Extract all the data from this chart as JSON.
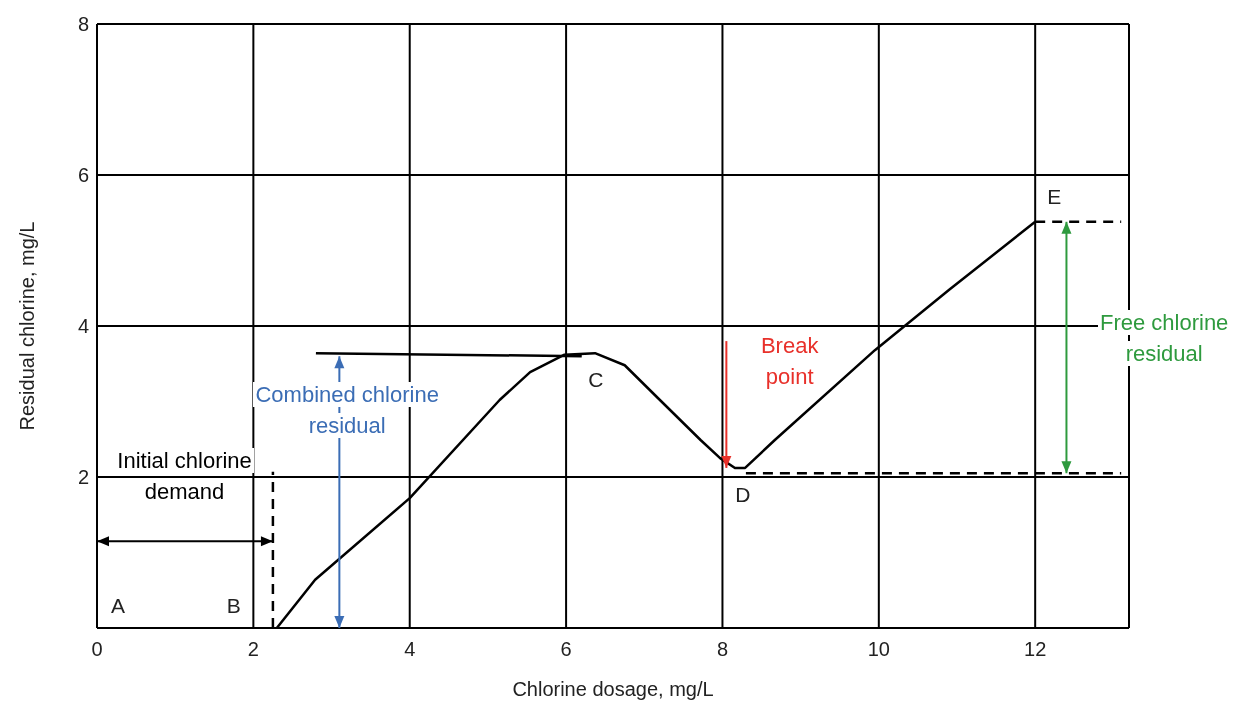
{
  "chart_data": {
    "type": "line",
    "xlabel": "Chlorine dosage, mg/L",
    "ylabel": "Residual chlorine, mg/L",
    "xlim": [
      0,
      13.2
    ],
    "xticks": [
      0,
      2,
      4,
      6,
      8,
      10,
      12
    ],
    "ylim": [
      0,
      8
    ],
    "yticks": [
      {
        "value": 0,
        "label": null
      },
      2,
      4,
      6,
      8
    ],
    "grid": true,
    "marker": "none",
    "series": [
      {
        "color": "#000000",
        "line_style": "solid",
        "x": [
          2.3,
          2.79,
          4.0,
          5.15,
          5.54,
          5.98,
          6.37,
          6.75,
          7.2,
          7.72,
          7.97,
          8.16,
          8.29,
          8.67,
          9.95,
          10.9,
          12.0
        ],
        "values": [
          0,
          0.64,
          1.72,
          3.02,
          3.39,
          3.62,
          3.64,
          3.48,
          3.02,
          2.49,
          2.25,
          2.12,
          2.12,
          2.49,
          3.68,
          4.48,
          5.38
        ]
      },
      {
        "color": "#000000",
        "line_style": "solid",
        "x": [
          2.8,
          6.2
        ],
        "values": [
          3.64,
          3.6
        ]
      },
      {
        "color": "#000000",
        "line_style": "dashed",
        "x": [
          2.25,
          2.25
        ],
        "values": [
          0,
          2.07
        ]
      },
      {
        "color": "#000000",
        "line_style": "dashed",
        "x": [
          12.0,
          13.1
        ],
        "values": [
          5.38,
          5.38
        ]
      },
      {
        "color": "#000000",
        "line_style": "dashed",
        "x": [
          8.3,
          13.1
        ],
        "values": [
          2.05,
          2.05
        ]
      }
    ],
    "annotations": [
      "A",
      "B",
      "C",
      "D",
      {
        "text": "E",
        "x": 12,
        "y": 5.38
      },
      "Initial chlorine demand",
      "Combined chlorine residual",
      "Break point",
      "Free chlorine residual"
    ]
  }
}
